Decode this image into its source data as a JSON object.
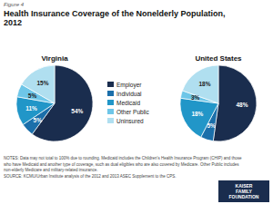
{
  "title": [
    "Health Insurance Coverage of the Nonelderly Population,",
    "2012"
  ],
  "annotations": [
    "Figure 4"
  ],
  "notes": [
    "NOTES: Data may not total to 100% due to rounding. Medicaid includes the Children's Health Insurance Program (CHIP) and those",
    "who have Medicaid and another type of coverage, such as dual eligibles who are also covered by Medicare. Other Public includes",
    "non-elderly Medicare and military-related insurance.",
    "SOURCE: KCMU/Urban Institute analysis of the 2012 and 2013 ASEC Supplement to the CPS."
  ],
  "logo": [
    "KAISER",
    "FAMILY",
    "FOUNDATION"
  ],
  "chart_data": [
    {
      "type": "pie",
      "title": "Virginia",
      "categories": [
        "Employer",
        "Individual",
        "Medicaid",
        "Other Public",
        "Uninsured"
      ],
      "values": [
        54,
        5,
        11,
        5,
        15
      ],
      "value_labels": [
        "54%",
        "5%",
        "11%",
        "5%",
        "15%"
      ],
      "colors": [
        "#1a2d4e",
        "#1b6faa",
        "#2196c8",
        "#6ec6e8",
        "#b0dff0"
      ],
      "data_labels": true,
      "legend": "center"
    },
    {
      "type": "pie",
      "title": "United States",
      "categories": [
        "Employer",
        "Individual",
        "Medicaid",
        "Other Public",
        "Uninsured"
      ],
      "values": [
        48,
        5,
        18,
        3,
        18
      ],
      "value_labels": [
        "48%",
        "5%",
        "18%",
        "3%",
        "18%"
      ],
      "colors": [
        "#1a2d4e",
        "#1b6faa",
        "#2196c8",
        "#6ec6e8",
        "#b0dff0"
      ],
      "data_labels": true
    }
  ]
}
